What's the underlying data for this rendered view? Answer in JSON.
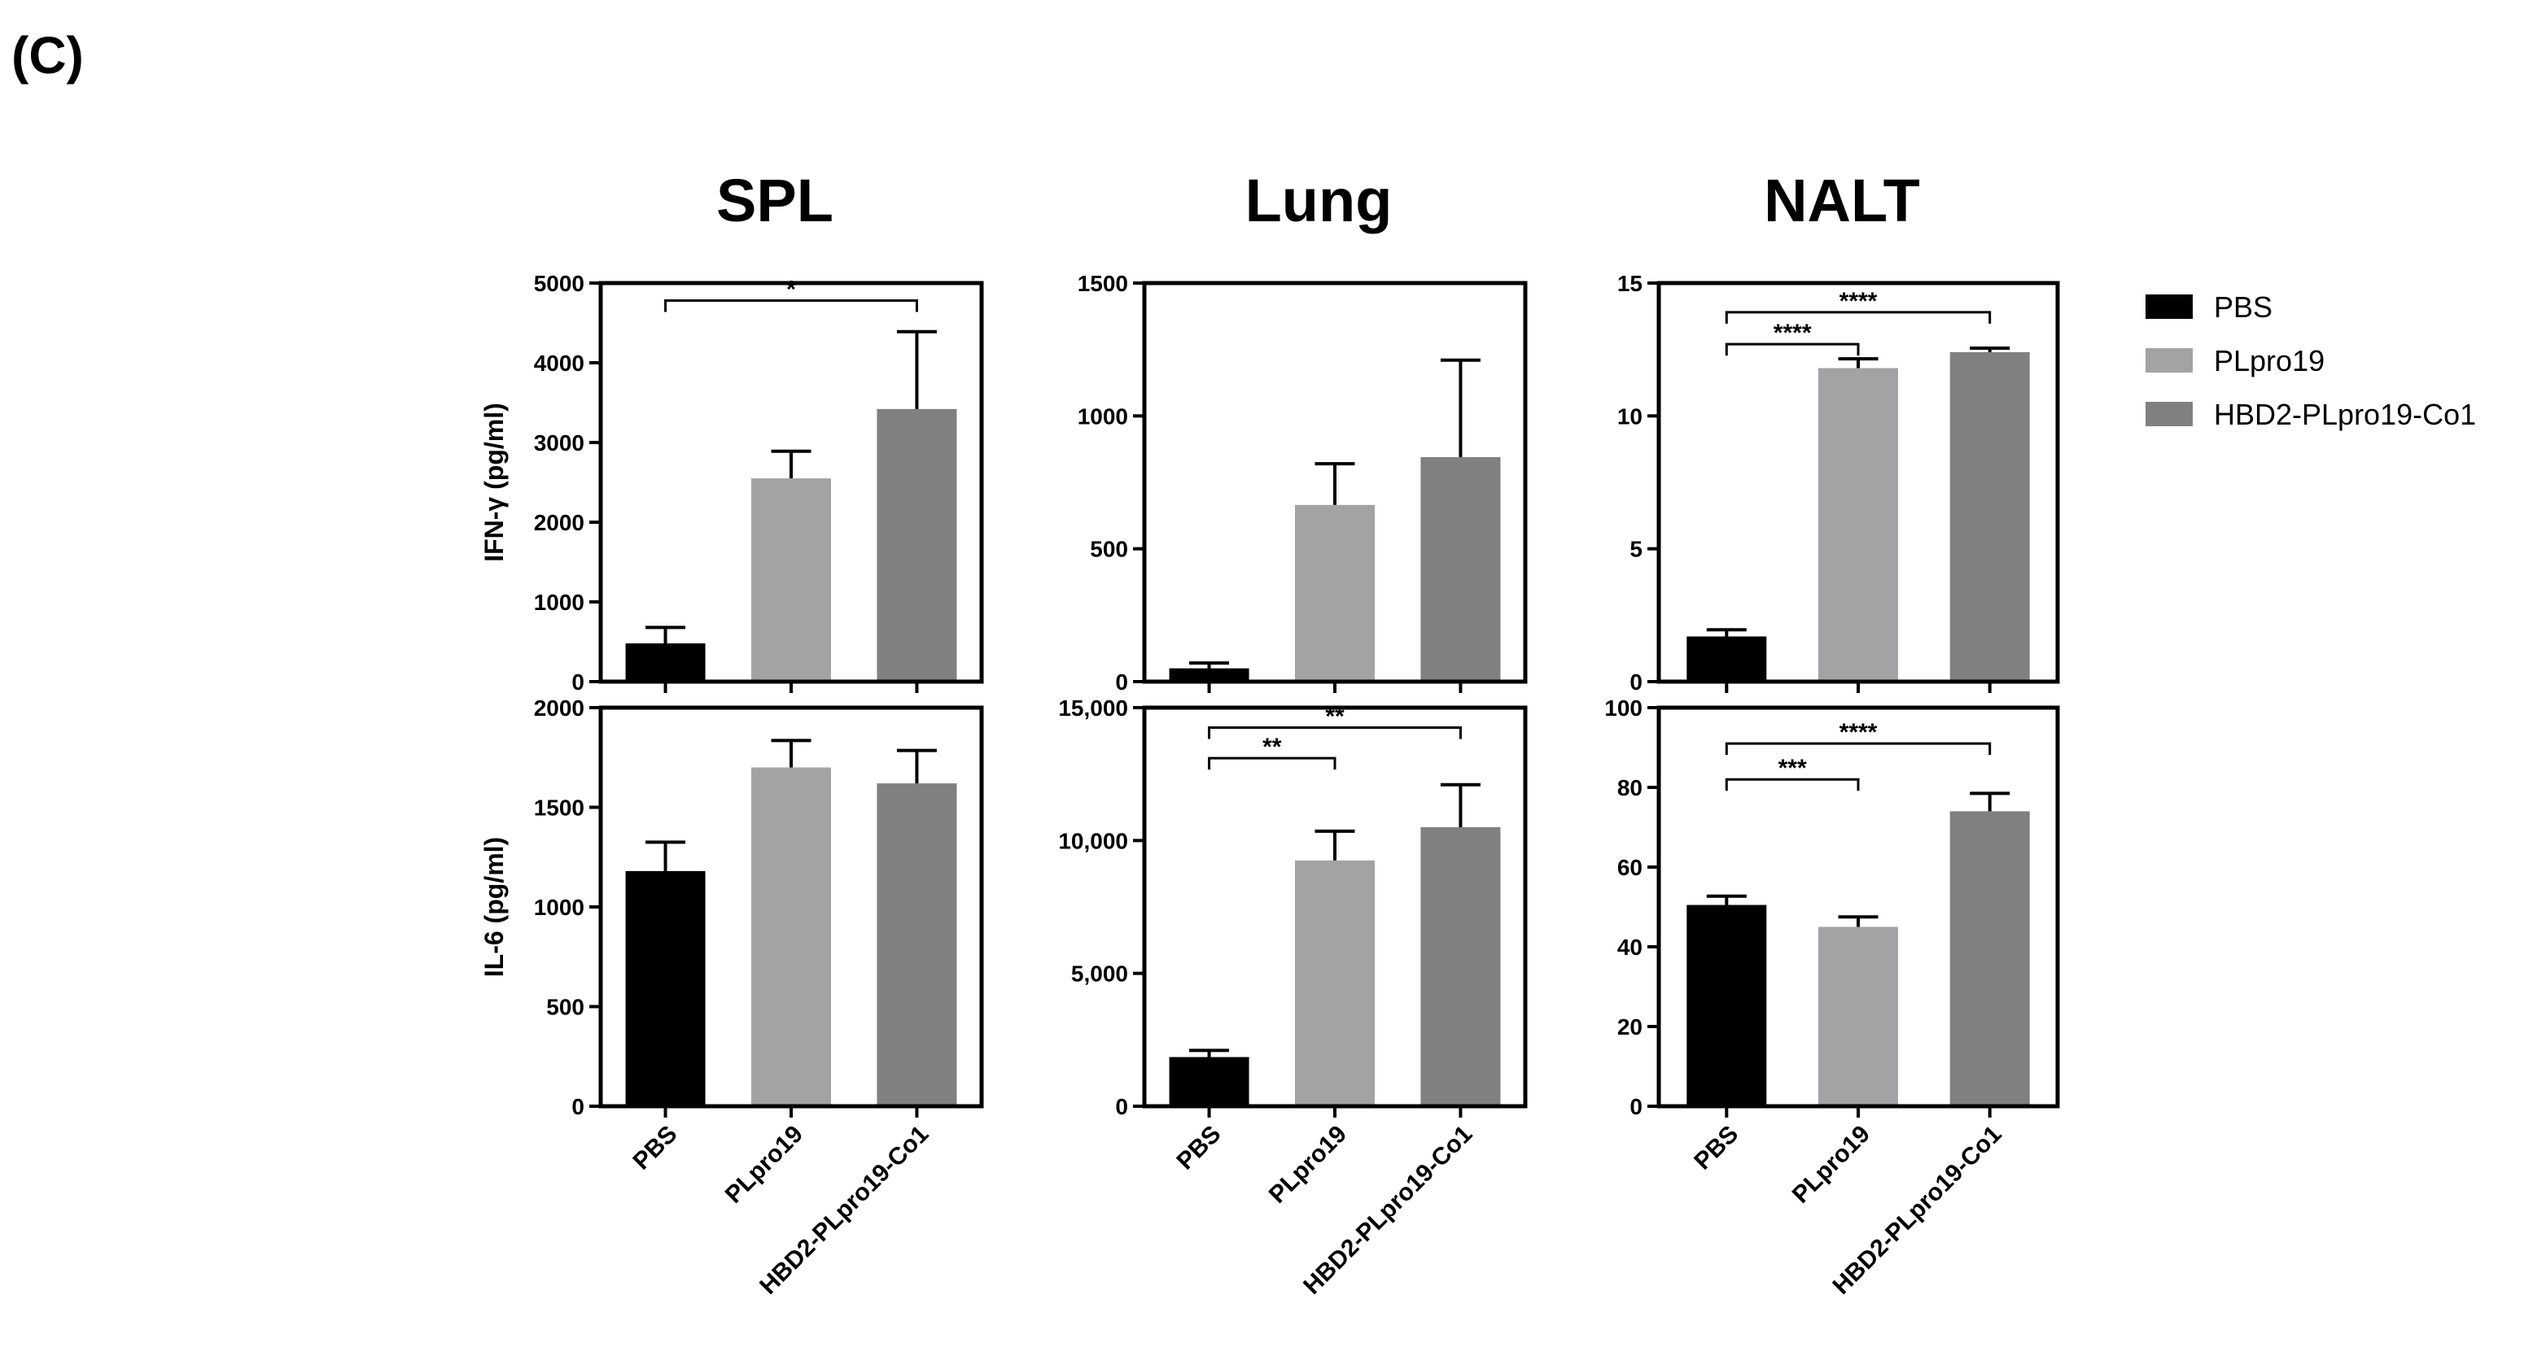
{
  "panel_label": "(C)",
  "column_titles": [
    "SPL",
    "Lung",
    "NALT"
  ],
  "colors": {
    "PBS": "#000000",
    "PLpro19": "#a3a3a6",
    "HBD2-PLpro19-Co1": "#808080"
  },
  "legend": [
    "PBS",
    "PLpro19",
    "HBD2-PLpro19-Co1"
  ],
  "chart_data": [
    {
      "type": "bar",
      "title": "SPL",
      "ylabel": "IFN-γ (pg/ml)",
      "categories": [
        "PBS",
        "PLpro19",
        "HBD2-PLpro19-Co1"
      ],
      "values": [
        480,
        2550,
        3420
      ],
      "errors": [
        200,
        340,
        970
      ],
      "ylim": [
        0,
        5000
      ],
      "yticks": [
        0,
        1000,
        2000,
        3000,
        4000,
        5000
      ],
      "yticklabels": [
        "0",
        "1000",
        "2000",
        "3000",
        "4000",
        "5000"
      ],
      "significance": [
        {
          "from": 0,
          "to": 2,
          "label": "*",
          "level": 4780
        }
      ]
    },
    {
      "type": "bar",
      "title": "Lung",
      "ylabel": "",
      "categories": [
        "PBS",
        "PLpro19",
        "HBD2-PLpro19-Co1"
      ],
      "values": [
        50,
        665,
        845
      ],
      "errors": [
        20,
        155,
        365
      ],
      "ylim": [
        0,
        1500
      ],
      "yticks": [
        0,
        500,
        1000,
        1500
      ],
      "yticklabels": [
        "0",
        "500",
        "1000",
        "1500"
      ],
      "significance": []
    },
    {
      "type": "bar",
      "title": "NALT",
      "ylabel": "",
      "categories": [
        "PBS",
        "PLpro19",
        "HBD2-PLpro19-Co1"
      ],
      "values": [
        1.7,
        11.8,
        12.4
      ],
      "errors": [
        0.25,
        0.35,
        0.15
      ],
      "ylim": [
        0,
        15
      ],
      "yticks": [
        0,
        5,
        10,
        15
      ],
      "yticklabels": [
        "0",
        "5",
        "10",
        "15"
      ],
      "significance": [
        {
          "from": 0,
          "to": 1,
          "label": "****",
          "level": 12.7
        },
        {
          "from": 0,
          "to": 2,
          "label": "****",
          "level": 13.9
        }
      ]
    },
    {
      "type": "bar",
      "title": "",
      "ylabel": "IL-6 (pg/ml)",
      "categories": [
        "PBS",
        "PLpro19",
        "HBD2-PLpro19-Co1"
      ],
      "values": [
        1180,
        1700,
        1620
      ],
      "errors": [
        145,
        135,
        165
      ],
      "ylim": [
        0,
        2000
      ],
      "yticks": [
        0,
        500,
        1000,
        1500,
        2000
      ],
      "yticklabels": [
        "0",
        "500",
        "1000",
        "1500",
        "2000"
      ],
      "significance": []
    },
    {
      "type": "bar",
      "title": "",
      "ylabel": "",
      "categories": [
        "PBS",
        "PLpro19",
        "HBD2-PLpro19-Co1"
      ],
      "values": [
        1850,
        9250,
        10500
      ],
      "errors": [
        250,
        1100,
        1600
      ],
      "ylim": [
        0,
        15000
      ],
      "yticks": [
        0,
        5000,
        10000,
        15000
      ],
      "yticklabels": [
        "0",
        "5,000",
        "10,000",
        "15,000"
      ],
      "significance": [
        {
          "from": 0,
          "to": 1,
          "label": "**",
          "level": 13100
        },
        {
          "from": 0,
          "to": 2,
          "label": "**",
          "level": 14250
        }
      ]
    },
    {
      "type": "bar",
      "title": "",
      "ylabel": "",
      "categories": [
        "PBS",
        "PLpro19",
        "HBD2-PLpro19-Co1"
      ],
      "values": [
        50.5,
        45,
        74
      ],
      "errors": [
        2.2,
        2.5,
        4.5
      ],
      "ylim": [
        0,
        100
      ],
      "yticks": [
        0,
        20,
        40,
        60,
        80,
        100
      ],
      "yticklabels": [
        "0",
        "20",
        "40",
        "60",
        "80",
        "100"
      ],
      "significance": [
        {
          "from": 0,
          "to": 1,
          "label": "***",
          "level": 82
        },
        {
          "from": 0,
          "to": 2,
          "label": "****",
          "level": 91
        }
      ]
    }
  ]
}
